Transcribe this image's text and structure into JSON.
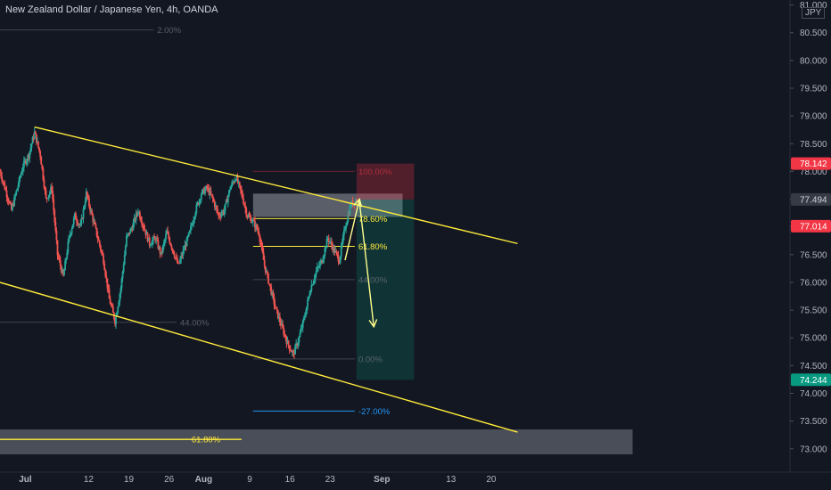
{
  "header": {
    "title": "New Zealand Dollar / Japanese Yen, 4h, OANDA"
  },
  "price_axis": {
    "currency": "JPY"
  },
  "colors": {
    "background": "#131722",
    "up_candle": "#26a69a",
    "down_candle": "#ef5350",
    "trendline": "#ffeb3b",
    "fib_line": "#ffeb3b",
    "label_red": "#f23645",
    "label_teal": "#089981",
    "label_current": "#363a45"
  },
  "chart_data": {
    "type": "candlestick",
    "instrument": "NZD/JPY",
    "timeframe": "4h",
    "ylim": [
      72.9,
      81.05
    ],
    "y_ticks": [
      73.0,
      73.5,
      74.0,
      74.5,
      75.0,
      75.5,
      76.0,
      76.5,
      77.0,
      77.5,
      78.0,
      78.5,
      79.0,
      79.5,
      80.0,
      80.5,
      81.0
    ],
    "y_tick_labels": [
      "73.000",
      "73.500",
      "74.000",
      "74.500",
      "75.000",
      "75.500",
      "76.000",
      "76.500",
      "77.000",
      "77.500",
      "78.000",
      "78.500",
      "79.000",
      "79.500",
      "80.000",
      "80.500",
      "81.000"
    ],
    "x_range_days": [
      0,
      62
    ],
    "x_ticks": [
      {
        "day": 1,
        "label": "Jul"
      },
      {
        "day": 12,
        "label": "12"
      },
      {
        "day": 19,
        "label": "19"
      },
      {
        "day": 26,
        "label": "26"
      },
      {
        "day": 32,
        "label": "Aug"
      },
      {
        "day": 40,
        "label": "9"
      },
      {
        "day": 47,
        "label": "16"
      },
      {
        "day": 54,
        "label": "23"
      },
      {
        "day": 63,
        "label": "Sep"
      },
      {
        "day": 75,
        "label": "13"
      },
      {
        "day": 82,
        "label": "20"
      }
    ],
    "path_points": [
      [
        0,
        78.0
      ],
      [
        2,
        77.3
      ],
      [
        4,
        78.1
      ],
      [
        5,
        78.3
      ],
      [
        6,
        78.7
      ],
      [
        7,
        78.3
      ],
      [
        8,
        77.5
      ],
      [
        9,
        77.7
      ],
      [
        10,
        76.5
      ],
      [
        11,
        76.1
      ],
      [
        12,
        76.8
      ],
      [
        13,
        77.2
      ],
      [
        14,
        77.0
      ],
      [
        15,
        77.6
      ],
      [
        16,
        77.2
      ],
      [
        17,
        76.8
      ],
      [
        18,
        76.4
      ],
      [
        19,
        75.7
      ],
      [
        20,
        75.3
      ],
      [
        21,
        75.9
      ],
      [
        22,
        76.8
      ],
      [
        23,
        77.0
      ],
      [
        24,
        77.3
      ],
      [
        25,
        77.0
      ],
      [
        26,
        76.7
      ],
      [
        27,
        76.8
      ],
      [
        28,
        76.5
      ],
      [
        29,
        76.9
      ],
      [
        30,
        76.6
      ],
      [
        31,
        76.3
      ],
      [
        32,
        76.6
      ],
      [
        33,
        76.9
      ],
      [
        34,
        77.3
      ],
      [
        35,
        77.6
      ],
      [
        36,
        77.7
      ],
      [
        37,
        77.5
      ],
      [
        38,
        77.2
      ],
      [
        39,
        77.3
      ],
      [
        40,
        77.7
      ],
      [
        41,
        77.9
      ],
      [
        42,
        77.6
      ],
      [
        43,
        77.2
      ],
      [
        44,
        77.1
      ],
      [
        45,
        76.9
      ],
      [
        46,
        76.3
      ],
      [
        47,
        75.9
      ],
      [
        48,
        75.5
      ],
      [
        49,
        75.2
      ],
      [
        50,
        74.9
      ],
      [
        51,
        74.7
      ],
      [
        52,
        75.0
      ],
      [
        53,
        75.4
      ],
      [
        54,
        75.9
      ],
      [
        55,
        76.2
      ],
      [
        56,
        76.4
      ],
      [
        57,
        76.8
      ],
      [
        58,
        76.6
      ],
      [
        59,
        76.4
      ],
      [
        60,
        77.0
      ],
      [
        61,
        77.4
      ],
      [
        62,
        77.49
      ]
    ],
    "trendlines": [
      {
        "name": "channel-upper",
        "from": [
          6,
          78.8
        ],
        "to": [
          90,
          76.7
        ]
      },
      {
        "name": "channel-lower",
        "from": [
          0,
          76.0
        ],
        "to": [
          90,
          73.3
        ]
      },
      {
        "name": "fib-anchor-line",
        "from": [
          0,
          73.17
        ],
        "to": [
          42,
          73.17
        ]
      }
    ],
    "fibonacci_labels": [
      {
        "name": "fib-top",
        "label": "2.00%",
        "price": 80.55,
        "x_from": 0,
        "x_to": 36
      },
      {
        "name": "fib-mid-left",
        "label": "44.00%",
        "price": 75.28,
        "x_from": 0,
        "x_to": 40
      },
      {
        "name": "fib-bottom-left",
        "label": "61.80%",
        "price": 73.17,
        "x_from": 0,
        "x_to": 42
      },
      {
        "name": "fib-100",
        "label": "100.00%",
        "price": 78.0,
        "x_from": 44,
        "x_to": 71
      },
      {
        "name": "fib-786",
        "label": "78.60%",
        "price": 77.15,
        "x_from": 44,
        "x_to": 71
      },
      {
        "name": "fib-618",
        "label": "61.80%",
        "price": 76.65,
        "x_from": 44,
        "x_to": 71
      },
      {
        "name": "fib-44",
        "label": "44.00%",
        "price": 76.05,
        "x_from": 44,
        "x_to": 71
      },
      {
        "name": "fib-0",
        "label": "0.00%",
        "price": 74.62,
        "x_from": 44,
        "x_to": 71
      },
      {
        "name": "fib-minus27",
        "label": "-27.00%",
        "price": 73.68,
        "x_from": 44,
        "x_to": 71
      }
    ],
    "zones": [
      {
        "name": "resistance-zone",
        "price_from": 77.18,
        "price_to": 77.6,
        "x_from": 44,
        "x_to": 70
      },
      {
        "name": "support-zone-bottom",
        "price_from": 72.9,
        "price_to": 73.35,
        "x_from": 0,
        "x_to": 110
      },
      {
        "name": "stop-loss-zone",
        "price_from": 77.494,
        "price_to": 78.142,
        "x_from": 62,
        "x_to": 72
      },
      {
        "name": "take-profit-zone",
        "price_from": 74.244,
        "price_to": 77.494,
        "x_from": 62,
        "x_to": 72
      }
    ],
    "arrows": [
      {
        "name": "arrow-up",
        "from": [
          60,
          76.4
        ],
        "to": [
          62.5,
          77.5
        ]
      },
      {
        "name": "arrow-down",
        "from": [
          62.5,
          77.45
        ],
        "to": [
          65,
          75.2
        ]
      }
    ],
    "price_labels": [
      {
        "name": "stop-loss-price",
        "value": "78.142",
        "price": 78.142,
        "kind": "red"
      },
      {
        "name": "current-price",
        "value": "77.494",
        "price": 77.494,
        "kind": "current"
      },
      {
        "name": "line-price",
        "value": "77.014",
        "price": 77.014,
        "kind": "red"
      },
      {
        "name": "take-profit-price",
        "value": "74.244",
        "price": 74.244,
        "kind": "teal"
      }
    ]
  }
}
